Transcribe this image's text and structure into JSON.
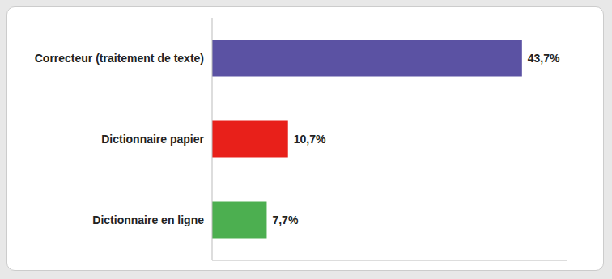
{
  "chart_data": {
    "type": "bar",
    "orientation": "horizontal",
    "categories": [
      "Dictionnaire en ligne",
      "Dictionnaire papier",
      "Correcteur (traitement de texte)"
    ],
    "values": [
      7.7,
      10.7,
      43.7
    ],
    "value_labels": [
      "7,7%",
      "10,7%",
      "43,7%"
    ],
    "colors": [
      "#4caf50",
      "#e8201a",
      "#5b52a3"
    ],
    "xlim": [
      0,
      50
    ],
    "data_labels": true,
    "tick_labels": "y",
    "grid": false
  }
}
